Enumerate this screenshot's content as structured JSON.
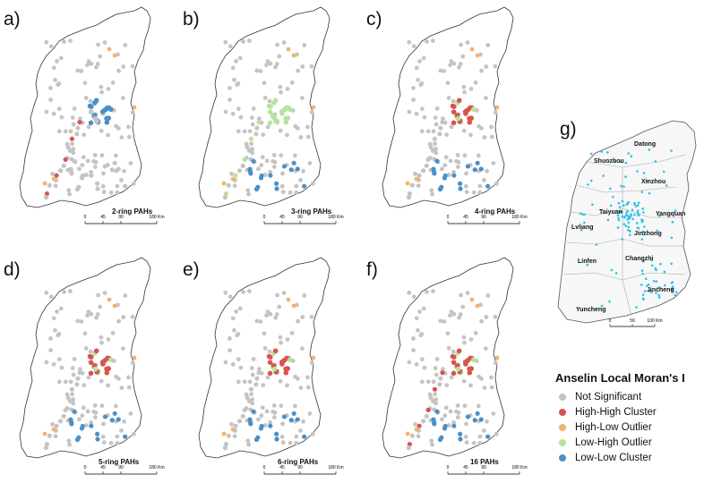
{
  "panels": [
    {
      "letter": "a)",
      "title": "2-ring PAHs"
    },
    {
      "letter": "b)",
      "title": "3-ring PAHs"
    },
    {
      "letter": "c)",
      "title": "4-ring PAHs"
    },
    {
      "letter": "d)",
      "title": "5-ring PAHs"
    },
    {
      "letter": "e)",
      "title": "6-ring PAHs"
    },
    {
      "letter": "f)",
      "title": "16 PAHs"
    }
  ],
  "scalebar": {
    "ticks": [
      "0",
      "45",
      "90",
      "180 Km"
    ]
  },
  "panel_g": {
    "letter": "g)",
    "cities": [
      "Datong",
      "Shuozhou",
      "Xinzhou",
      "Taiyuan",
      "Yangquan",
      "Lvliang",
      "Jinzhong",
      "Changzhi",
      "Linfen",
      "Jincheng",
      "Yuncheng"
    ],
    "scale_ticks": [
      "0",
      "50",
      "100 Km"
    ],
    "point_color": "#29c4e8"
  },
  "legend": {
    "title": "Anselin Local Moran's I",
    "items": [
      {
        "label": "Not Significant",
        "color": "#c4c4c4"
      },
      {
        "label": "High-High Cluster",
        "color": "#d9534f"
      },
      {
        "label": "High-Low Outlier",
        "color": "#f4b36b"
      },
      {
        "label": "Low-High Outlier",
        "color": "#b7e39b"
      },
      {
        "label": "Low-Low Cluster",
        "color": "#4a90c8"
      }
    ]
  }
}
